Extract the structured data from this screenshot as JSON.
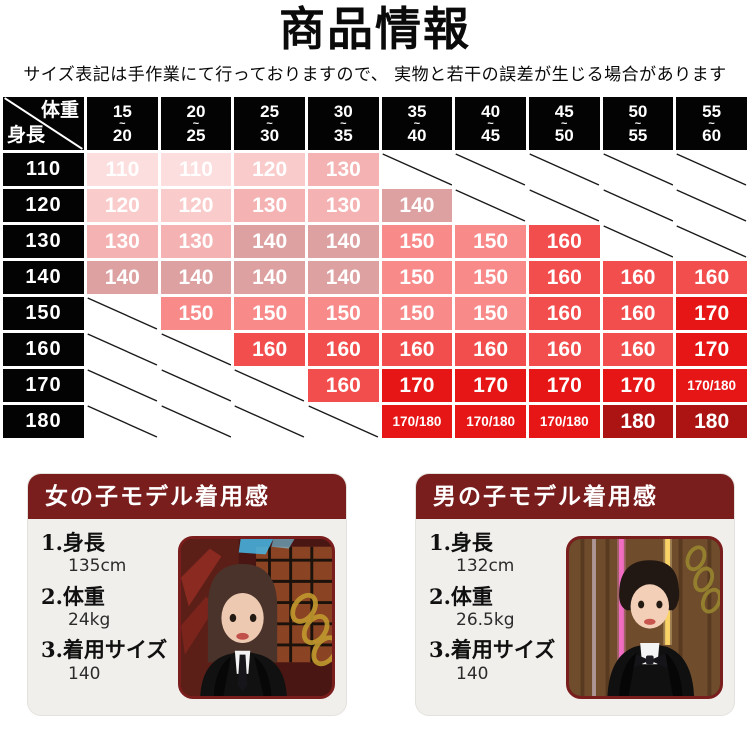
{
  "page": {
    "title": "商品情報",
    "subtitle": "サイズ表記は手作業にて行っておりますので、 実物と若干の誤差が生じる場合があります"
  },
  "size_chart": {
    "corner_top_right": "体重",
    "corner_bottom_left": "身長",
    "tilde": "~",
    "weight_columns": [
      {
        "from": "15",
        "to": "20"
      },
      {
        "from": "20",
        "to": "25"
      },
      {
        "from": "25",
        "to": "30"
      },
      {
        "from": "30",
        "to": "35"
      },
      {
        "from": "35",
        "to": "40"
      },
      {
        "from": "40",
        "to": "45"
      },
      {
        "from": "45",
        "to": "50"
      },
      {
        "from": "50",
        "to": "55"
      },
      {
        "from": "55",
        "to": "60"
      }
    ],
    "rows": [
      {
        "height": "110",
        "cells": [
          "110",
          "110",
          "120",
          "130",
          "",
          "",
          "",
          "",
          ""
        ]
      },
      {
        "height": "120",
        "cells": [
          "120",
          "120",
          "130",
          "130",
          "140",
          "",
          "",
          "",
          ""
        ]
      },
      {
        "height": "130",
        "cells": [
          "130",
          "130",
          "140",
          "140",
          "150",
          "150",
          "160",
          "",
          ""
        ]
      },
      {
        "height": "140",
        "cells": [
          "140",
          "140",
          "140",
          "140",
          "150",
          "150",
          "160",
          "160",
          "160"
        ]
      },
      {
        "height": "150",
        "cells": [
          "",
          "150",
          "150",
          "150",
          "150",
          "150",
          "160",
          "160",
          "170"
        ]
      },
      {
        "height": "160",
        "cells": [
          "",
          "",
          "160",
          "160",
          "160",
          "160",
          "160",
          "160",
          "170"
        ]
      },
      {
        "height": "170",
        "cells": [
          "",
          "",
          "",
          "160",
          "170",
          "170",
          "170",
          "170",
          "170/180"
        ]
      },
      {
        "height": "180",
        "cells": [
          "",
          "",
          "",
          "",
          "170/180",
          "170/180",
          "170/180",
          "180",
          "180"
        ]
      }
    ],
    "value_colors": {
      "110": "#fcdede",
      "120": "#f9cbcb",
      "130": "#f5b2b2",
      "140": "#dda1a1",
      "150": "#f98a8a",
      "160": "#f34e4e",
      "170": "#e61616",
      "170/180": "#e61616",
      "180": "#ac1313"
    },
    "header_bg": "#030303",
    "empty_line_color": "#1a1a1a"
  },
  "cards": [
    {
      "title": "女の子モデル着用感",
      "photo": "girl-model-photo",
      "items": [
        {
          "label": "1.身長",
          "value": "135cm"
        },
        {
          "label": "2.体重",
          "value": "24kg"
        },
        {
          "label": "3.着用サイズ",
          "value": "140"
        }
      ]
    },
    {
      "title": "男の子モデル着用感",
      "photo": "boy-model-photo",
      "items": [
        {
          "label": "1.身長",
          "value": "132cm"
        },
        {
          "label": "2.体重",
          "value": "26.5kg"
        },
        {
          "label": "3.着用サイズ",
          "value": "140"
        }
      ]
    }
  ],
  "colors": {
    "accent_maroon": "#7a1d1d",
    "card_bg": "#f1efec"
  }
}
